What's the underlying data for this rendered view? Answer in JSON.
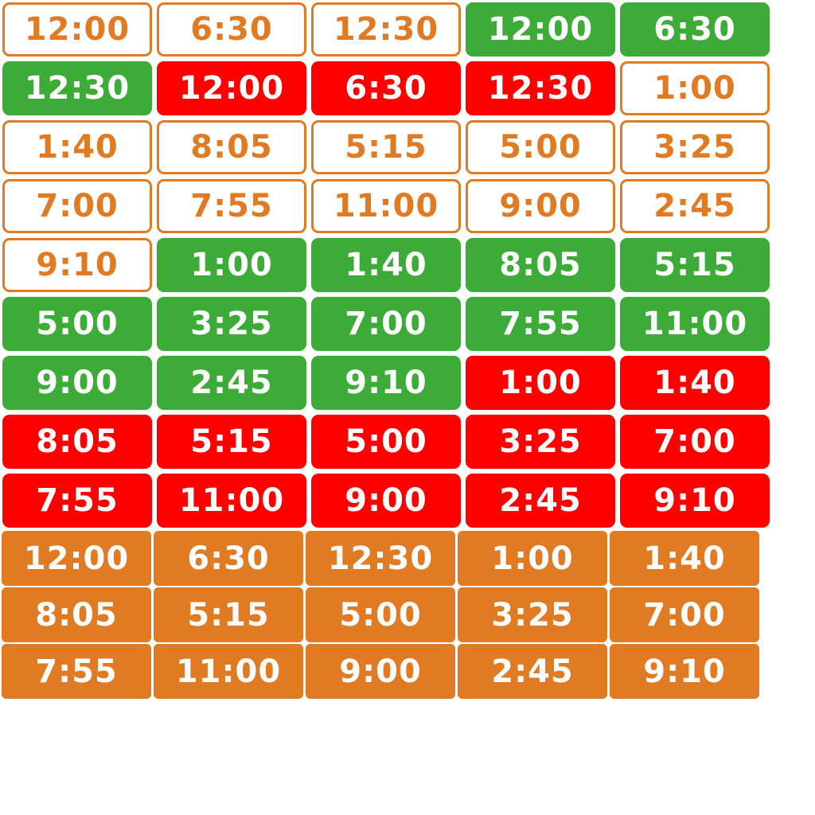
{
  "palette": {
    "outline": "#e07b23",
    "green": "#3dab38",
    "red": "#ff0000",
    "orange": "#e07b23"
  },
  "rows": [
    {
      "styles": [
        "outline",
        "outline",
        "outline",
        "green",
        "green"
      ],
      "times": [
        "12:00",
        "6:30",
        "12:30",
        "12:00",
        "6:30"
      ]
    },
    {
      "styles": [
        "green",
        "red",
        "red",
        "red",
        "outline"
      ],
      "times": [
        "12:30",
        "12:00",
        "6:30",
        "12:30",
        "1:00"
      ]
    },
    {
      "styles": [
        "outline",
        "outline",
        "outline",
        "outline",
        "outline"
      ],
      "times": [
        "1:40",
        "8:05",
        "5:15",
        "5:00",
        "3:25"
      ]
    },
    {
      "styles": [
        "outline",
        "outline",
        "outline",
        "outline",
        "outline"
      ],
      "times": [
        "7:00",
        "7:55",
        "11:00",
        "9:00",
        "2:45"
      ]
    },
    {
      "styles": [
        "outline",
        "green",
        "green",
        "green",
        "green"
      ],
      "times": [
        "9:10",
        "1:00",
        "1:40",
        "8:05",
        "5:15"
      ]
    },
    {
      "styles": [
        "green",
        "green",
        "green",
        "green",
        "green"
      ],
      "times": [
        "5:00",
        "3:25",
        "7:00",
        "7:55",
        "11:00"
      ]
    },
    {
      "styles": [
        "green",
        "green",
        "green",
        "red",
        "red"
      ],
      "times": [
        "9:00",
        "2:45",
        "9:10",
        "1:00",
        "1:40"
      ]
    },
    {
      "styles": [
        "red",
        "red",
        "red",
        "red",
        "red"
      ],
      "times": [
        "8:05",
        "5:15",
        "5:00",
        "3:25",
        "7:00"
      ]
    },
    {
      "styles": [
        "red",
        "red",
        "red",
        "red",
        "red"
      ],
      "times": [
        "7:55",
        "11:00",
        "9:00",
        "2:45",
        "9:10"
      ]
    },
    {
      "styles": [
        "orange",
        "orange",
        "orange",
        "orange",
        "orange"
      ],
      "times": [
        "12:00",
        "6:30",
        "12:30",
        "1:00",
        "1:40"
      ]
    },
    {
      "styles": [
        "orange",
        "orange",
        "orange",
        "orange",
        "orange"
      ],
      "times": [
        "8:05",
        "5:15",
        "5:00",
        "3:25",
        "7:00"
      ]
    },
    {
      "styles": [
        "orange",
        "orange",
        "orange",
        "orange",
        "orange"
      ],
      "times": [
        "7:55",
        "11:00",
        "9:00",
        "2:45",
        "9:10"
      ]
    }
  ]
}
